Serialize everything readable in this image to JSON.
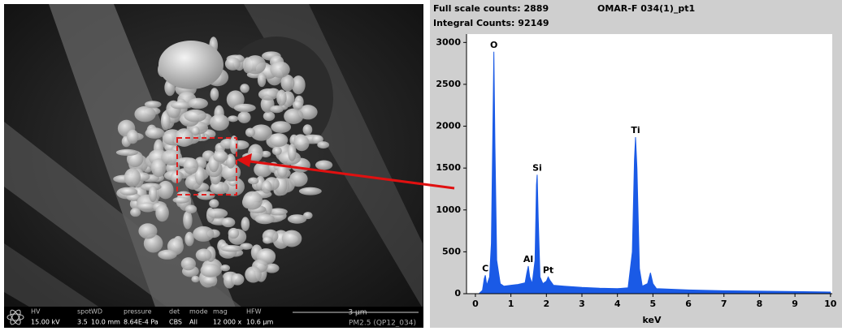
{
  "sem": {
    "info_bar": {
      "fields": [
        {
          "label": "HV",
          "value": "15.00 kV"
        },
        {
          "label": "spot",
          "value": "3.5"
        },
        {
          "label": "WD",
          "value": "10.0 mm"
        },
        {
          "label": "pressure",
          "value": "8.64E-4 Pa"
        },
        {
          "label": "det",
          "value": "CBS"
        },
        {
          "label": "mode",
          "value": "All"
        },
        {
          "label": "mag",
          "value": "12 000 x"
        },
        {
          "label": "HFW",
          "value": "10.6 µm"
        }
      ],
      "scale_bar": "3 µm",
      "sample": "PM2.5 (QP12_034)"
    }
  },
  "chart_data": {
    "type": "area",
    "title": "OMAR-F 034(1)_pt1",
    "full_scale": "Full scale counts: 2889",
    "integral": "Integral Counts: 92149",
    "x_label": "keV",
    "x": [
      0.1,
      0.2,
      0.25,
      0.28,
      0.32,
      0.4,
      0.45,
      0.5,
      0.52,
      0.55,
      0.6,
      0.7,
      0.8,
      1.0,
      1.2,
      1.4,
      1.45,
      1.49,
      1.53,
      1.6,
      1.68,
      1.72,
      1.74,
      1.77,
      1.82,
      1.9,
      2.0,
      2.05,
      2.1,
      2.2,
      2.5,
      3.0,
      3.5,
      4.0,
      4.3,
      4.42,
      4.48,
      4.51,
      4.55,
      4.62,
      4.7,
      4.85,
      4.93,
      5.0,
      5.1,
      6.0,
      7.0,
      8.0,
      9.0,
      10.0
    ],
    "values": [
      0,
      40,
      180,
      220,
      100,
      200,
      600,
      2200,
      2889,
      1800,
      400,
      120,
      90,
      100,
      110,
      130,
      250,
      330,
      200,
      120,
      400,
      1300,
      1420,
      900,
      200,
      120,
      150,
      200,
      160,
      100,
      90,
      75,
      65,
      60,
      70,
      500,
      1600,
      1870,
      1500,
      300,
      90,
      120,
      250,
      120,
      60,
      45,
      35,
      30,
      25,
      20
    ],
    "color": "#1a5ae6",
    "xlim": [
      -0.25,
      10.05
    ],
    "ylim": [
      0,
      3100
    ],
    "xticks": [
      0,
      1,
      2,
      3,
      4,
      5,
      6,
      7,
      8,
      9,
      10
    ],
    "yticks": [
      0,
      500,
      1000,
      1500,
      2000,
      2500,
      3000
    ],
    "annotations": [
      {
        "text": "C",
        "x": 0.28,
        "y": 220
      },
      {
        "text": "O",
        "x": 0.52,
        "y": 2889
      },
      {
        "text": "Al",
        "x": 1.49,
        "y": 330
      },
      {
        "text": "Si",
        "x": 1.74,
        "y": 1420
      },
      {
        "text": "Pt",
        "x": 2.05,
        "y": 200
      },
      {
        "text": "Ti",
        "x": 4.51,
        "y": 1870
      }
    ]
  }
}
